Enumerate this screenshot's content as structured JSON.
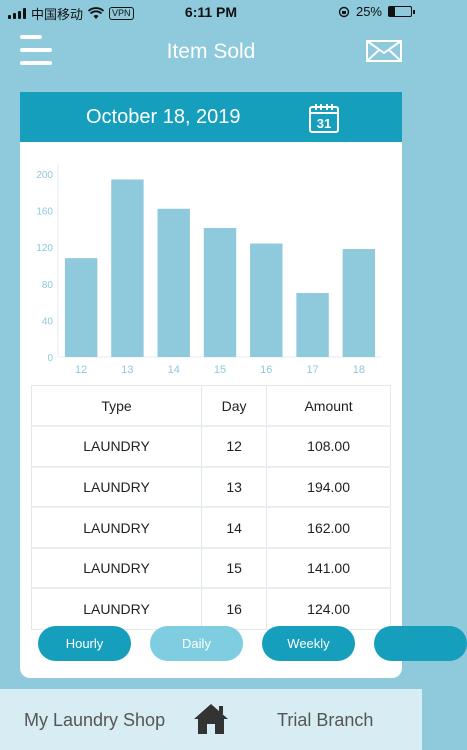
{
  "status_bar": {
    "carrier": "中国移动",
    "vpn": "VPN",
    "time": "6:11 PM",
    "battery": "25%",
    "battery_level": 0.25
  },
  "header": {
    "title": "Item Sold",
    "menu_icon": "hamburger-menu-icon",
    "mail_icon": "envelope-icon"
  },
  "date_bar": {
    "date": "October 18, 2019",
    "calendar_icon": "calendar-icon",
    "calendar_day": "31"
  },
  "colors": {
    "accent": "#169fbd",
    "bar": "#8ec9dc",
    "inactive_tab": "#7fcde1",
    "background": "#8ec9dc",
    "axis_text": "#8ec9dc"
  },
  "chart_data": {
    "type": "bar",
    "categories": [
      "12",
      "13",
      "14",
      "15",
      "16",
      "17",
      "18"
    ],
    "values": [
      108,
      194,
      162,
      141,
      124,
      70,
      118
    ],
    "y_ticks": [
      "0",
      "40",
      "80",
      "120",
      "160",
      "200"
    ],
    "ylim": [
      0,
      200
    ],
    "grid": false,
    "title": "",
    "xlabel": "",
    "ylabel": ""
  },
  "table": {
    "headers": [
      "Type",
      "Day",
      "Amount"
    ],
    "rows": [
      [
        "LAUNDRY",
        "12",
        "108.00"
      ],
      [
        "LAUNDRY",
        "13",
        "194.00"
      ],
      [
        "LAUNDRY",
        "14",
        "162.00"
      ],
      [
        "LAUNDRY",
        "15",
        "141.00"
      ],
      [
        "LAUNDRY",
        "16",
        "124.00"
      ]
    ]
  },
  "tabs": [
    {
      "label": "Hourly",
      "state": "active"
    },
    {
      "label": "Daily",
      "state": "inactive"
    },
    {
      "label": "Weekly",
      "state": "active"
    },
    {
      "label": "",
      "state": "active"
    }
  ],
  "bottom_bar": {
    "shop": "My Laundry Shop",
    "home_icon": "home-icon",
    "branch": "Trial Branch"
  }
}
